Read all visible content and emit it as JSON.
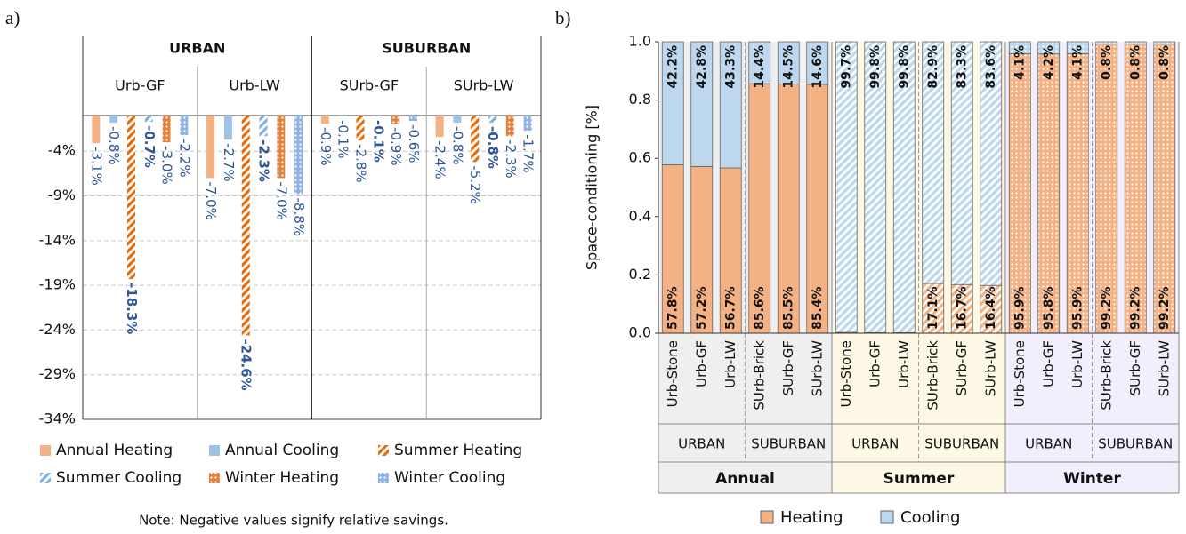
{
  "chart_data": [
    {
      "type": "bar",
      "panel_label": "a)",
      "groups": [
        "URBAN",
        "SUBURBAN"
      ],
      "categories": [
        "Urb-GF",
        "Urb-LW",
        "SUrb-GF",
        "SUrb-LW"
      ],
      "ylim": [
        -34,
        0
      ],
      "yticks": [
        {
          "value": -4,
          "label": "-4%"
        },
        {
          "value": -9,
          "label": "-9%"
        },
        {
          "value": -14,
          "label": "-14%"
        },
        {
          "value": -19,
          "label": "-19%"
        },
        {
          "value": -24,
          "label": "-24%"
        },
        {
          "value": -29,
          "label": "-29%"
        },
        {
          "value": -34,
          "label": "-34%"
        }
      ],
      "grid": true,
      "label_color": "#2f5597",
      "series": [
        {
          "name": "Annual Heating",
          "color": "#f4b183",
          "pattern": "solid",
          "values": [
            -3.1,
            -7.0,
            -0.9,
            -2.4
          ],
          "value_labels": [
            "-3.1%",
            "-7.0%",
            "-0.9%",
            "-2.4%"
          ]
        },
        {
          "name": "Annual Cooling",
          "color": "#9dc3e6",
          "pattern": "solid",
          "values": [
            -0.8,
            -2.7,
            -0.1,
            -0.8
          ],
          "value_labels": [
            "-0.8%",
            "-2.7%",
            "-0.1%",
            "-0.8%"
          ]
        },
        {
          "name": "Summer Heating",
          "color": "#e46c0a",
          "pattern": "stripes",
          "values": [
            -18.3,
            -24.6,
            -2.8,
            -5.2
          ],
          "value_labels": [
            "-18.3%",
            "-24.6%",
            "-2.8%",
            "-5.2%"
          ],
          "bold": [
            true,
            true,
            false,
            false
          ]
        },
        {
          "name": "Summer Cooling",
          "color": "#7fb2e0",
          "pattern": "stripes",
          "values": [
            -0.7,
            -2.3,
            -0.1,
            -0.8
          ],
          "value_labels": [
            "-0.7%",
            "-2.3%",
            "-0.1%",
            "-0.8%"
          ],
          "bold": [
            true,
            true,
            true,
            true
          ]
        },
        {
          "name": "Winter Heating",
          "color": "#e2823f",
          "pattern": "dots",
          "values": [
            -3.0,
            -7.0,
            -0.9,
            -2.3
          ],
          "value_labels": [
            "-3.0%",
            "-7.0%",
            "-0.9%",
            "-2.3%"
          ]
        },
        {
          "name": "Winter Cooling",
          "color": "#8fb4e3",
          "pattern": "dots",
          "values": [
            -2.2,
            -8.8,
            -0.6,
            -1.7
          ],
          "value_labels": [
            "-2.2%",
            "-8.8%",
            "-0.6%",
            "-1.7%"
          ]
        }
      ],
      "note": "Note: Negative values signify relative savings."
    },
    {
      "type": "stacked_bar",
      "panel_label": "b)",
      "y_label": "Space-conditioning [%]",
      "categories": [
        "Urb-Stone",
        "Urb-GF",
        "Urb-LW",
        "SUrb-Brick",
        "SUrb-GF",
        "SUrb-LW",
        "Urb-Stone",
        "Urb-GF",
        "Urb-LW",
        "SUrb-Brick",
        "SUrb-GF",
        "SUrb-LW",
        "Urb-Stone",
        "Urb-GF",
        "Urb-LW",
        "SUrb-Brick",
        "SUrb-GF",
        "SUrb-LW"
      ],
      "subgroups": [
        "URBAN",
        "SUBURBAN",
        "URBAN",
        "SUBURBAN",
        "URBAN",
        "SUBURBAN"
      ],
      "seasons": [
        {
          "name": "Annual",
          "pattern": "solid",
          "background": "#efefef"
        },
        {
          "name": "Summer",
          "pattern": "stripes",
          "background": "#fdf9e6"
        },
        {
          "name": "Winter",
          "pattern": "dots",
          "background": "#f3eefb"
        }
      ],
      "ylim": [
        0,
        1
      ],
      "yticks": [
        {
          "value": 0,
          "label": "0.0"
        },
        {
          "value": 0.2,
          "label": "0.2"
        },
        {
          "value": 0.4,
          "label": "0.4"
        },
        {
          "value": 0.6,
          "label": "0.6"
        },
        {
          "value": 0.8,
          "label": "0.8"
        },
        {
          "value": 1,
          "label": "1.0"
        }
      ],
      "series": [
        {
          "name": "Heating",
          "color": "#f4b183",
          "values": [
            0.578,
            0.572,
            0.567,
            0.856,
            0.855,
            0.854,
            0.003,
            0.002,
            0.002,
            0.171,
            0.167,
            0.164,
            0.959,
            0.958,
            0.959,
            0.992,
            0.992,
            0.992
          ],
          "value_labels": [
            "57.8%",
            "57.2%",
            "56.7%",
            "85.6%",
            "85.5%",
            "85.4%",
            "0.3%",
            "0.2%",
            "0.2%",
            "17.1%",
            "16.7%",
            "16.4%",
            "95.9%",
            "95.8%",
            "95.9%",
            "99.2%",
            "99.2%",
            "99.2%"
          ]
        },
        {
          "name": "Cooling",
          "color": "#bdd7ee",
          "values": [
            0.422,
            0.428,
            0.433,
            0.144,
            0.145,
            0.146,
            0.997,
            0.998,
            0.998,
            0.829,
            0.833,
            0.836,
            0.041,
            0.042,
            0.041,
            0.008,
            0.008,
            0.008
          ],
          "value_labels": [
            "42.2%",
            "42.8%",
            "43.3%",
            "14.4%",
            "14.5%",
            "14.6%",
            "99.7%",
            "99.8%",
            "99.8%",
            "82.9%",
            "83.3%",
            "83.6%",
            "4.1%",
            "4.2%",
            "4.1%",
            "0.8%",
            "0.8%",
            "0.8%"
          ]
        }
      ]
    }
  ]
}
